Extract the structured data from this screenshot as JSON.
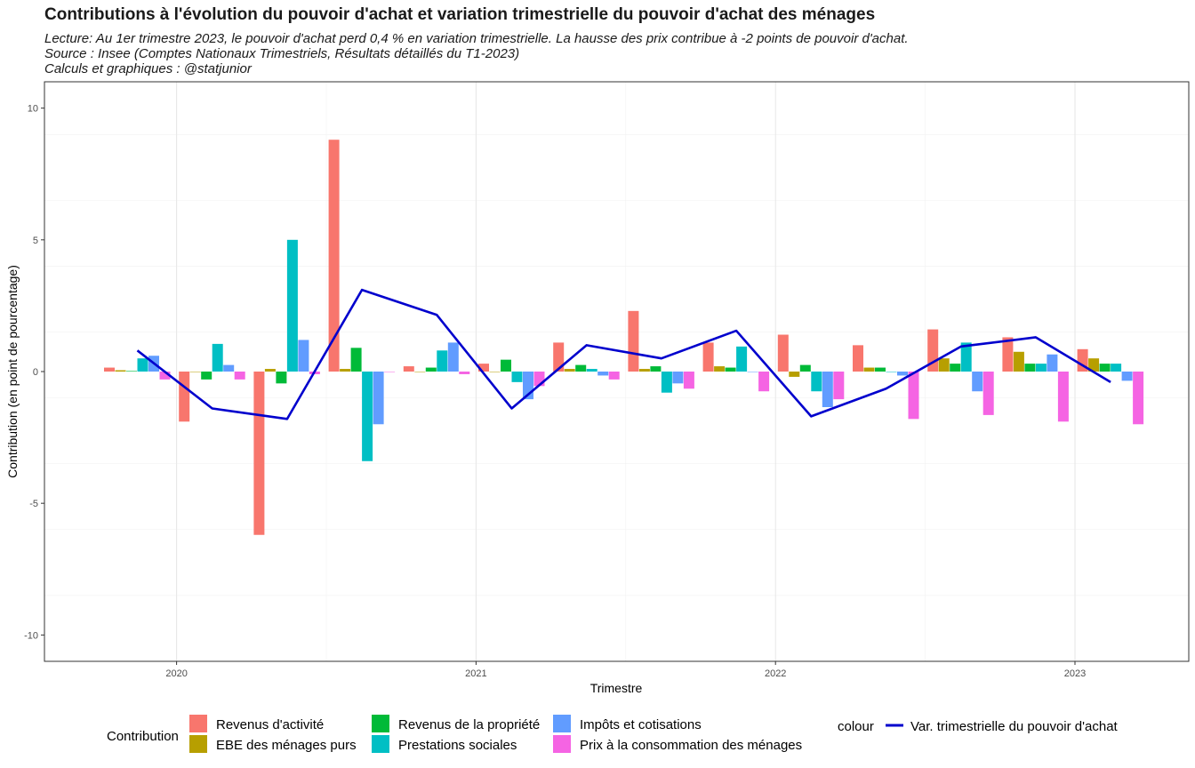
{
  "header": {
    "title": "Contributions à l'évolution du pouvoir d'achat et variation trimestrielle du pouvoir d'achat des ménages",
    "subtitle_lines": [
      "Lecture: Au 1er trimestre 2023, le pouvoir d'achat perd 0,4 % en variation trimestrielle. La hausse des prix contribue à -2 points de pouvoir d'achat.",
      "Source : Insee (Comptes Nationaux Trimestriels, Résultats détaillés du T1-2023)",
      "Calculs et graphiques : @statjunior"
    ]
  },
  "chart_data": {
    "type": "bar",
    "xlabel": "Trimestre",
    "ylabel": "Contribution (en point de pourcentage)",
    "ylim": [
      -11,
      11
    ],
    "yticks": [
      -10,
      -5,
      0,
      5,
      10
    ],
    "ytick_labels": [
      "-10",
      "-5",
      "0",
      "5",
      "10"
    ],
    "xticks": [
      "2020",
      "2021",
      "2022",
      "2023"
    ],
    "categories": [
      "2019-T4",
      "2020-T1",
      "2020-T2",
      "2020-T3",
      "2020-T4",
      "2021-T1",
      "2021-T2",
      "2021-T3",
      "2021-T4",
      "2022-T1",
      "2022-T2",
      "2022-T3",
      "2022-T4",
      "2023-T1"
    ],
    "grid": true,
    "legend_position": "bottom",
    "legend_title": "Contribution",
    "series": [
      {
        "name": "Revenus d'activité",
        "color": "#F8766D",
        "values": [
          0.15,
          -1.9,
          -6.2,
          8.8,
          0.2,
          0.3,
          1.1,
          2.3,
          1.1,
          1.4,
          1.0,
          1.6,
          1.3,
          0.85
        ]
      },
      {
        "name": "EBE des ménages purs",
        "color": "#B79F00",
        "values": [
          0.05,
          0.0,
          0.1,
          0.1,
          0.0,
          0.0,
          0.1,
          0.1,
          0.2,
          -0.2,
          0.15,
          0.5,
          0.75,
          0.5
        ]
      },
      {
        "name": "Revenus de la propriété",
        "color": "#00BA38",
        "values": [
          0.02,
          -0.3,
          -0.45,
          0.9,
          0.15,
          0.45,
          0.25,
          0.2,
          0.15,
          0.25,
          0.15,
          0.3,
          0.3,
          0.3
        ]
      },
      {
        "name": "Prestations sociales",
        "color": "#00BFC4",
        "values": [
          0.5,
          1.05,
          5.0,
          -3.4,
          0.8,
          -0.4,
          0.1,
          -0.8,
          0.95,
          -0.75,
          0.0,
          1.1,
          0.3,
          0.3
        ]
      },
      {
        "name": "Impôts et cotisations",
        "color": "#619CFF",
        "values": [
          0.6,
          0.25,
          1.2,
          -2.0,
          1.1,
          -1.05,
          -0.15,
          -0.45,
          0.0,
          -1.35,
          -0.15,
          -0.75,
          0.65,
          -0.35
        ]
      },
      {
        "name": "Prix à la consommation des ménages",
        "color": "#F564E3",
        "values": [
          -0.3,
          -0.3,
          -0.1,
          0.0,
          -0.1,
          -0.55,
          -0.3,
          -0.65,
          -0.75,
          -1.05,
          -1.8,
          -1.65,
          -1.9,
          -2.0
        ]
      }
    ],
    "line_series": {
      "legend_title": "colour",
      "name": "Var. trimestrielle du pouvoir d'achat",
      "color": "#0000CD",
      "values": [
        0.8,
        -1.4,
        -1.8,
        3.1,
        2.15,
        -1.4,
        1.0,
        0.5,
        1.55,
        -1.7,
        -0.65,
        0.95,
        1.3,
        -0.4
      ]
    }
  }
}
